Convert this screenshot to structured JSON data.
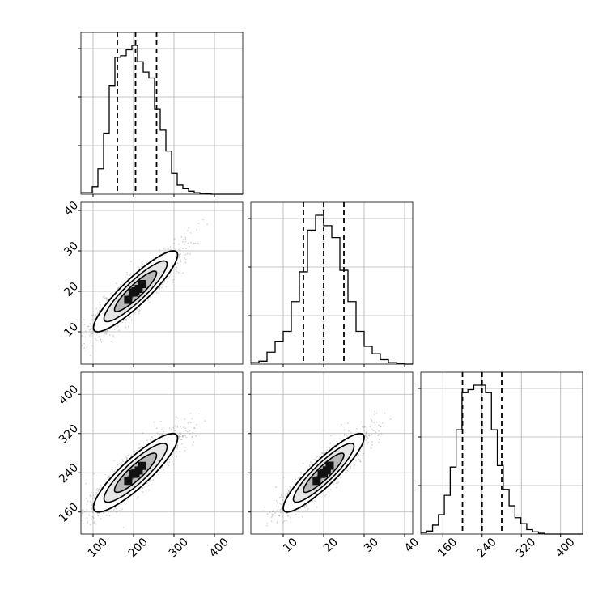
{
  "chart_data": {
    "type": "corner",
    "grid": true,
    "axis_color": "#000000",
    "grid_color": "#b0b0b0",
    "scatter_color": "#888888",
    "variables": [
      {
        "range": [
          70,
          470
        ],
        "ticks": [
          100,
          200,
          300,
          400
        ],
        "tick_labels": [
          "100",
          "200",
          "300",
          "400"
        ],
        "quantiles": [
          160,
          205,
          257
        ],
        "hist_bins": [
          [
            70,
            84,
            0.01
          ],
          [
            84,
            98,
            0.01
          ],
          [
            98,
            112,
            0.05
          ],
          [
            112,
            126,
            0.17
          ],
          [
            126,
            140,
            0.41
          ],
          [
            140,
            154,
            0.73
          ],
          [
            154,
            168,
            0.92
          ],
          [
            168,
            182,
            0.93
          ],
          [
            182,
            196,
            0.97
          ],
          [
            196,
            210,
            1.0
          ],
          [
            210,
            224,
            0.89
          ],
          [
            224,
            238,
            0.82
          ],
          [
            238,
            252,
            0.78
          ],
          [
            252,
            266,
            0.57
          ],
          [
            266,
            280,
            0.43
          ],
          [
            280,
            294,
            0.29
          ],
          [
            294,
            308,
            0.14
          ],
          [
            308,
            322,
            0.06
          ],
          [
            322,
            336,
            0.04
          ],
          [
            336,
            350,
            0.02
          ],
          [
            350,
            364,
            0.01
          ],
          [
            364,
            378,
            0.005
          ],
          [
            378,
            392,
            0.002
          ],
          [
            392,
            470,
            0.0
          ]
        ]
      },
      {
        "range": [
          2,
          42
        ],
        "ticks": [
          10,
          20,
          30,
          40
        ],
        "tick_labels": [
          "10",
          "20",
          "30",
          "40"
        ],
        "quantiles": [
          15,
          20,
          25
        ],
        "hist_bins": [
          [
            2,
            4,
            0.01
          ],
          [
            4,
            6,
            0.02
          ],
          [
            6,
            8,
            0.08
          ],
          [
            8,
            10,
            0.15
          ],
          [
            10,
            12,
            0.22
          ],
          [
            12,
            14,
            0.42
          ],
          [
            14,
            16,
            0.62
          ],
          [
            16,
            18,
            0.9
          ],
          [
            18,
            20,
            1.0
          ],
          [
            20,
            22,
            0.93
          ],
          [
            22,
            24,
            0.85
          ],
          [
            24,
            26,
            0.63
          ],
          [
            26,
            28,
            0.42
          ],
          [
            28,
            30,
            0.22
          ],
          [
            30,
            32,
            0.12
          ],
          [
            32,
            34,
            0.07
          ],
          [
            34,
            36,
            0.03
          ],
          [
            36,
            38,
            0.01
          ],
          [
            38,
            40,
            0.005
          ],
          [
            40,
            42,
            0.0
          ]
        ]
      },
      {
        "range": [
          115,
          445
        ],
        "ticks": [
          160,
          240,
          320,
          400
        ],
        "tick_labels": [
          "160",
          "240",
          "320",
          "400"
        ],
        "quantiles": [
          200,
          240,
          280
        ],
        "hist_bins": [
          [
            115,
            127,
            0.01
          ],
          [
            127,
            139,
            0.02
          ],
          [
            139,
            151,
            0.06
          ],
          [
            151,
            163,
            0.13
          ],
          [
            163,
            175,
            0.26
          ],
          [
            175,
            187,
            0.45
          ],
          [
            187,
            199,
            0.7
          ],
          [
            199,
            211,
            0.95
          ],
          [
            211,
            223,
            0.97
          ],
          [
            223,
            235,
            1.0
          ],
          [
            235,
            247,
            1.0
          ],
          [
            247,
            259,
            0.95
          ],
          [
            259,
            271,
            0.7
          ],
          [
            271,
            283,
            0.46
          ],
          [
            283,
            295,
            0.3
          ],
          [
            295,
            307,
            0.19
          ],
          [
            307,
            319,
            0.11
          ],
          [
            319,
            331,
            0.07
          ],
          [
            331,
            343,
            0.03
          ],
          [
            343,
            355,
            0.015
          ],
          [
            355,
            367,
            0.005
          ],
          [
            367,
            445,
            0.0
          ]
        ]
      }
    ],
    "pairs": [
      {
        "x_var": 0,
        "y_var": 1,
        "mean": [
          205,
          20
        ],
        "sd": [
          52,
          5
        ],
        "corr": 0.9
      },
      {
        "x_var": 0,
        "y_var": 2,
        "mean": [
          205,
          240
        ],
        "sd": [
          52,
          40
        ],
        "corr": 0.88
      },
      {
        "x_var": 1,
        "y_var": 2,
        "mean": [
          20,
          240
        ],
        "sd": [
          5,
          40
        ],
        "corr": 0.9
      }
    ]
  }
}
